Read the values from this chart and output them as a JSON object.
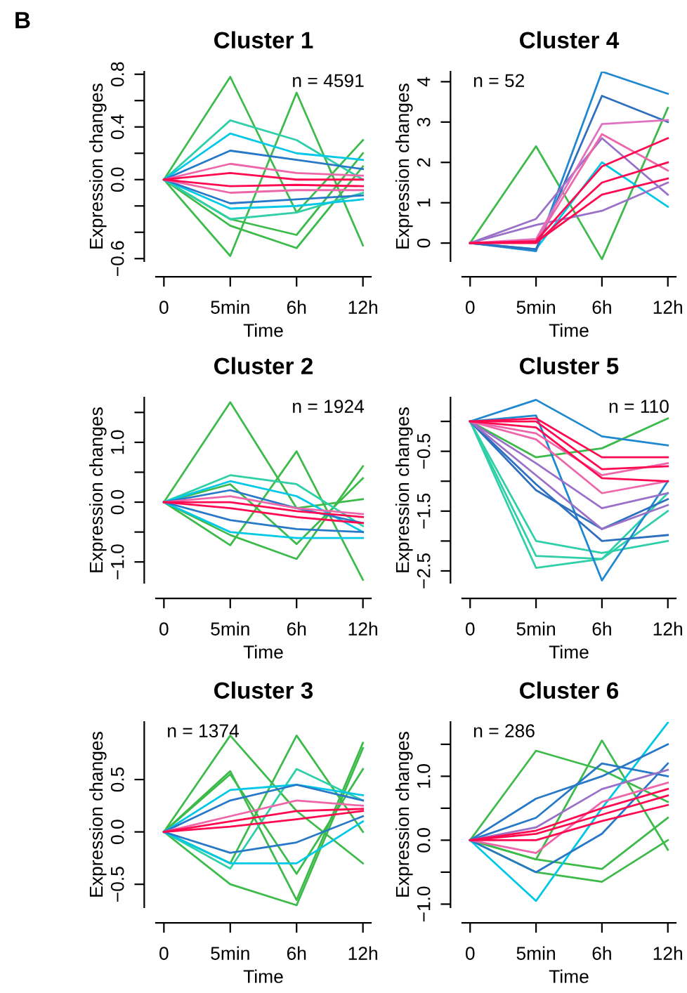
{
  "chart_data": [
    {
      "type": "line",
      "title": "Cluster 1",
      "xlabel": "Time",
      "ylabel": "Expression changes",
      "categories": [
        "0",
        "5min",
        "6h",
        "12h"
      ],
      "ylim": [
        -0.62,
        0.82
      ],
      "yticks": [
        {
          "value": -0.6,
          "label": "−0.6"
        },
        {
          "value": -0.4,
          "label": null
        },
        {
          "value": -0.2,
          "label": null
        },
        {
          "value": 0.0,
          "label": "0.0"
        },
        {
          "value": 0.2,
          "label": null
        },
        {
          "value": 0.4,
          "label": "0.4"
        },
        {
          "value": 0.6,
          "label": null
        },
        {
          "value": 0.8,
          "label": "0.8"
        }
      ],
      "annotations": [
        "n = 4591",
        "B"
      ],
      "series": [
        {
          "color": "#3dbb4a",
          "values": [
            0,
            0.78,
            -0.25,
            0.3
          ]
        },
        {
          "color": "#3dbb4a",
          "values": [
            0,
            -0.58,
            0.66,
            -0.5
          ]
        },
        {
          "color": "#3dbb4a",
          "values": [
            0,
            -0.35,
            -0.52,
            0.1
          ]
        },
        {
          "color": "#3dbb4a",
          "values": [
            0,
            -0.3,
            -0.42,
            0.2
          ]
        },
        {
          "color": "#2fcfa8",
          "values": [
            0,
            0.45,
            0.3,
            0.0
          ]
        },
        {
          "color": "#2fcfa8",
          "values": [
            0,
            -0.3,
            -0.25,
            -0.1
          ]
        },
        {
          "color": "#00c8e6",
          "values": [
            0,
            0.35,
            0.2,
            0.15
          ]
        },
        {
          "color": "#00c8e6",
          "values": [
            0,
            -0.22,
            -0.2,
            -0.15
          ]
        },
        {
          "color": "#2878c8",
          "values": [
            0,
            0.22,
            0.15,
            0.08
          ]
        },
        {
          "color": "#2878c8",
          "values": [
            0,
            -0.18,
            -0.15,
            -0.12
          ]
        },
        {
          "color": "#ee66aa",
          "values": [
            0,
            0.12,
            0.05,
            0.03
          ]
        },
        {
          "color": "#ee66aa",
          "values": [
            0,
            -0.1,
            -0.08,
            -0.08
          ]
        },
        {
          "color": "#ff0a50",
          "values": [
            0,
            0.05,
            0.0,
            0.0
          ]
        },
        {
          "color": "#ff0a50",
          "values": [
            0,
            -0.05,
            -0.04,
            -0.05
          ]
        }
      ]
    },
    {
      "type": "line",
      "title": "Cluster 4",
      "xlabel": "Time",
      "ylabel": "Expression changes",
      "categories": [
        "0",
        "5min",
        "6h",
        "12h"
      ],
      "ylim": [
        -0.45,
        4.25
      ],
      "yticks": [
        0,
        1,
        2,
        3,
        4
      ],
      "annotations": [
        "n = 52"
      ],
      "series": [
        {
          "color": "#3dbb4a",
          "values": [
            0,
            2.4,
            -0.4,
            3.35
          ]
        },
        {
          "color": "#00c8e6",
          "values": [
            0,
            -0.15,
            2.0,
            0.9
          ]
        },
        {
          "color": "#1f88d0",
          "values": [
            0,
            -0.2,
            4.25,
            3.7
          ]
        },
        {
          "color": "#2f6fc0",
          "values": [
            0,
            -0.15,
            3.65,
            3.0
          ]
        },
        {
          "color": "#9a70c8",
          "values": [
            0,
            0.6,
            2.6,
            1.2
          ]
        },
        {
          "color": "#9a70c8",
          "values": [
            0,
            0.45,
            0.8,
            1.5
          ]
        },
        {
          "color": "#e070c0",
          "values": [
            0,
            0.1,
            2.95,
            3.05
          ]
        },
        {
          "color": "#ee66aa",
          "values": [
            0,
            0.05,
            2.7,
            1.8
          ]
        },
        {
          "color": "#ff0a50",
          "values": [
            0,
            0.05,
            1.9,
            2.6
          ]
        },
        {
          "color": "#ff0a50",
          "values": [
            0,
            0.0,
            1.5,
            2.0
          ]
        },
        {
          "color": "#ff0a50",
          "values": [
            0,
            0.02,
            1.2,
            1.6
          ]
        }
      ]
    },
    {
      "type": "line",
      "title": "Cluster 2",
      "xlabel": "Time",
      "ylabel": "Expression changes",
      "categories": [
        "0",
        "5min",
        "6h",
        "12h"
      ],
      "ylim": [
        -1.35,
        1.75
      ],
      "yticks": [
        {
          "value": -1.0,
          "label": "−1.0"
        },
        {
          "value": -0.5,
          "label": null
        },
        {
          "value": 0.0,
          "label": "0.0"
        },
        {
          "value": 0.5,
          "label": null
        },
        {
          "value": 1.0,
          "label": "1.0"
        },
        {
          "value": 1.5,
          "label": null
        }
      ],
      "annotations": [
        "n = 1924"
      ],
      "series": [
        {
          "color": "#3dbb4a",
          "values": [
            0,
            1.67,
            -0.1,
            0.05
          ]
        },
        {
          "color": "#3dbb4a",
          "values": [
            0,
            -0.72,
            0.85,
            -1.3
          ]
        },
        {
          "color": "#3dbb4a",
          "values": [
            0,
            -0.55,
            -0.95,
            0.6
          ]
        },
        {
          "color": "#3dbb4a",
          "values": [
            0,
            0.3,
            -0.7,
            0.4
          ]
        },
        {
          "color": "#2fcfa8",
          "values": [
            0,
            0.45,
            0.3,
            -0.4
          ]
        },
        {
          "color": "#00c8e6",
          "values": [
            0,
            0.35,
            0.1,
            -0.5
          ]
        },
        {
          "color": "#00c8e6",
          "values": [
            0,
            -0.5,
            -0.6,
            -0.6
          ]
        },
        {
          "color": "#2878c8",
          "values": [
            0,
            0.2,
            -0.1,
            -0.35
          ]
        },
        {
          "color": "#2878c8",
          "values": [
            0,
            -0.3,
            -0.45,
            -0.5
          ]
        },
        {
          "color": "#ee66aa",
          "values": [
            0,
            0.1,
            -0.1,
            -0.2
          ]
        },
        {
          "color": "#ff0a50",
          "values": [
            0,
            0.0,
            -0.15,
            -0.25
          ]
        },
        {
          "color": "#ff0a50",
          "values": [
            0,
            -0.1,
            -0.25,
            -0.35
          ]
        }
      ]
    },
    {
      "type": "line",
      "title": "Cluster 5",
      "xlabel": "Time",
      "ylabel": "Expression changes",
      "categories": [
        "0",
        "5min",
        "6h",
        "12h"
      ],
      "ylim": [
        -2.7,
        0.4
      ],
      "yticks": [
        {
          "value": -2.5,
          "label": "−2.5"
        },
        {
          "value": -2.0,
          "label": null
        },
        {
          "value": -1.5,
          "label": "−1.5"
        },
        {
          "value": -1.0,
          "label": null
        },
        {
          "value": -0.5,
          "label": "−0.5"
        },
        {
          "value": 0.0,
          "label": null
        }
      ],
      "annotations": [
        "n = 110"
      ],
      "series": [
        {
          "color": "#3dbb4a",
          "values": [
            0,
            -0.6,
            -0.45,
            0.05
          ]
        },
        {
          "color": "#2fcfa8",
          "values": [
            0,
            -2.45,
            -2.3,
            -1.2
          ]
        },
        {
          "color": "#2fcfa8",
          "values": [
            0,
            -2.0,
            -2.2,
            -2.0
          ]
        },
        {
          "color": "#2fcfa8",
          "values": [
            0,
            -2.25,
            -2.3,
            -1.5
          ]
        },
        {
          "color": "#1f88d0",
          "values": [
            0,
            0.36,
            -0.25,
            -0.4
          ]
        },
        {
          "color": "#1f88d0",
          "values": [
            0,
            0.1,
            -2.66,
            -1.0
          ]
        },
        {
          "color": "#2f6fc0",
          "values": [
            0,
            -1.15,
            -1.8,
            -1.3
          ]
        },
        {
          "color": "#2f6fc0",
          "values": [
            0,
            -1.05,
            -2.0,
            -1.9
          ]
        },
        {
          "color": "#9a70c8",
          "values": [
            0,
            -0.9,
            -1.8,
            -1.4
          ]
        },
        {
          "color": "#9a70c8",
          "values": [
            0,
            -0.7,
            -1.45,
            -1.2
          ]
        },
        {
          "color": "#ee66aa",
          "values": [
            0,
            -0.3,
            -1.2,
            -1.0
          ]
        },
        {
          "color": "#ee66aa",
          "values": [
            0,
            -0.2,
            -0.9,
            -0.7
          ]
        },
        {
          "color": "#ff0a50",
          "values": [
            0,
            0.0,
            -0.8,
            -0.75
          ]
        },
        {
          "color": "#ff0a50",
          "values": [
            0,
            -0.1,
            -0.95,
            -1.0
          ]
        },
        {
          "color": "#ff0a50",
          "values": [
            0,
            0.05,
            -0.6,
            -0.6
          ]
        }
      ]
    },
    {
      "type": "line",
      "title": "Cluster 3",
      "xlabel": "Time",
      "ylabel": "Expression changes",
      "categories": [
        "0",
        "5min",
        "6h",
        "12h"
      ],
      "ylim": [
        -0.72,
        1.05
      ],
      "yticks": [
        {
          "value": -0.5,
          "label": "−0.5"
        },
        {
          "value": 0.0,
          "label": "0.0"
        },
        {
          "value": 0.5,
          "label": "0.5"
        }
      ],
      "annotations": [
        "n = 1374"
      ],
      "series": [
        {
          "color": "#3dbb4a",
          "values": [
            0,
            0.92,
            0.2,
            -0.3
          ]
        },
        {
          "color": "#3dbb4a",
          "values": [
            0,
            -0.3,
            0.92,
            0.0
          ]
        },
        {
          "color": "#3dbb4a",
          "values": [
            0,
            0.58,
            -0.65,
            0.85
          ]
        },
        {
          "color": "#3dbb4a",
          "values": [
            0,
            -0.5,
            -0.7,
            0.8
          ]
        },
        {
          "color": "#3dbb4a",
          "values": [
            0,
            0.55,
            -0.4,
            0.6
          ]
        },
        {
          "color": "#2fcfa8",
          "values": [
            0,
            -0.35,
            0.6,
            0.3
          ]
        },
        {
          "color": "#00c8e6",
          "values": [
            0,
            0.4,
            0.45,
            0.35
          ]
        },
        {
          "color": "#00c8e6",
          "values": [
            0,
            -0.3,
            -0.3,
            0.1
          ]
        },
        {
          "color": "#2878c8",
          "values": [
            0,
            0.3,
            0.45,
            0.3
          ]
        },
        {
          "color": "#2878c8",
          "values": [
            0,
            -0.2,
            -0.1,
            0.15
          ]
        },
        {
          "color": "#ee66aa",
          "values": [
            0,
            0.15,
            0.3,
            0.25
          ]
        },
        {
          "color": "#ff0a50",
          "values": [
            0,
            0.05,
            0.12,
            0.2
          ]
        },
        {
          "color": "#ff0a50",
          "values": [
            0,
            0.1,
            0.2,
            0.22
          ]
        }
      ]
    },
    {
      "type": "line",
      "title": "Cluster 6",
      "xlabel": "Time",
      "ylabel": "Expression changes",
      "categories": [
        "0",
        "5min",
        "6h",
        "12h"
      ],
      "ylim": [
        -1.05,
        1.85
      ],
      "yticks": [
        {
          "value": -1.0,
          "label": "−1.0"
        },
        {
          "value": -0.5,
          "label": null
        },
        {
          "value": 0.0,
          "label": "0.0"
        },
        {
          "value": 0.5,
          "label": null
        },
        {
          "value": 1.0,
          "label": "1.0"
        },
        {
          "value": 1.5,
          "label": null
        }
      ],
      "annotations": [
        "n = 286"
      ],
      "series": [
        {
          "color": "#3dbb4a",
          "values": [
            0,
            1.4,
            1.1,
            0.6
          ]
        },
        {
          "color": "#3dbb4a",
          "values": [
            0,
            -0.3,
            1.56,
            -0.15
          ]
        },
        {
          "color": "#3dbb4a",
          "values": [
            0,
            -0.5,
            -0.65,
            0.0
          ]
        },
        {
          "color": "#3dbb4a",
          "values": [
            0,
            -0.3,
            -0.45,
            0.35
          ]
        },
        {
          "color": "#00c8e6",
          "values": [
            0,
            -0.95,
            0.5,
            1.84
          ]
        },
        {
          "color": "#2878c8",
          "values": [
            0,
            0.65,
            1.0,
            1.5
          ]
        },
        {
          "color": "#2878c8",
          "values": [
            0,
            -0.5,
            0.1,
            1.2
          ]
        },
        {
          "color": "#2878c8",
          "values": [
            0,
            0.35,
            1.2,
            1.0
          ]
        },
        {
          "color": "#9a70c8",
          "values": [
            0,
            0.2,
            0.8,
            1.1
          ]
        },
        {
          "color": "#ee66aa",
          "values": [
            0,
            -0.2,
            0.6,
            0.9
          ]
        },
        {
          "color": "#ff0a50",
          "values": [
            0,
            0.1,
            0.4,
            0.7
          ]
        },
        {
          "color": "#ff0a50",
          "values": [
            0,
            0.0,
            0.3,
            0.55
          ]
        },
        {
          "color": "#ff0a50",
          "values": [
            0,
            0.15,
            0.5,
            0.8
          ]
        }
      ]
    }
  ]
}
